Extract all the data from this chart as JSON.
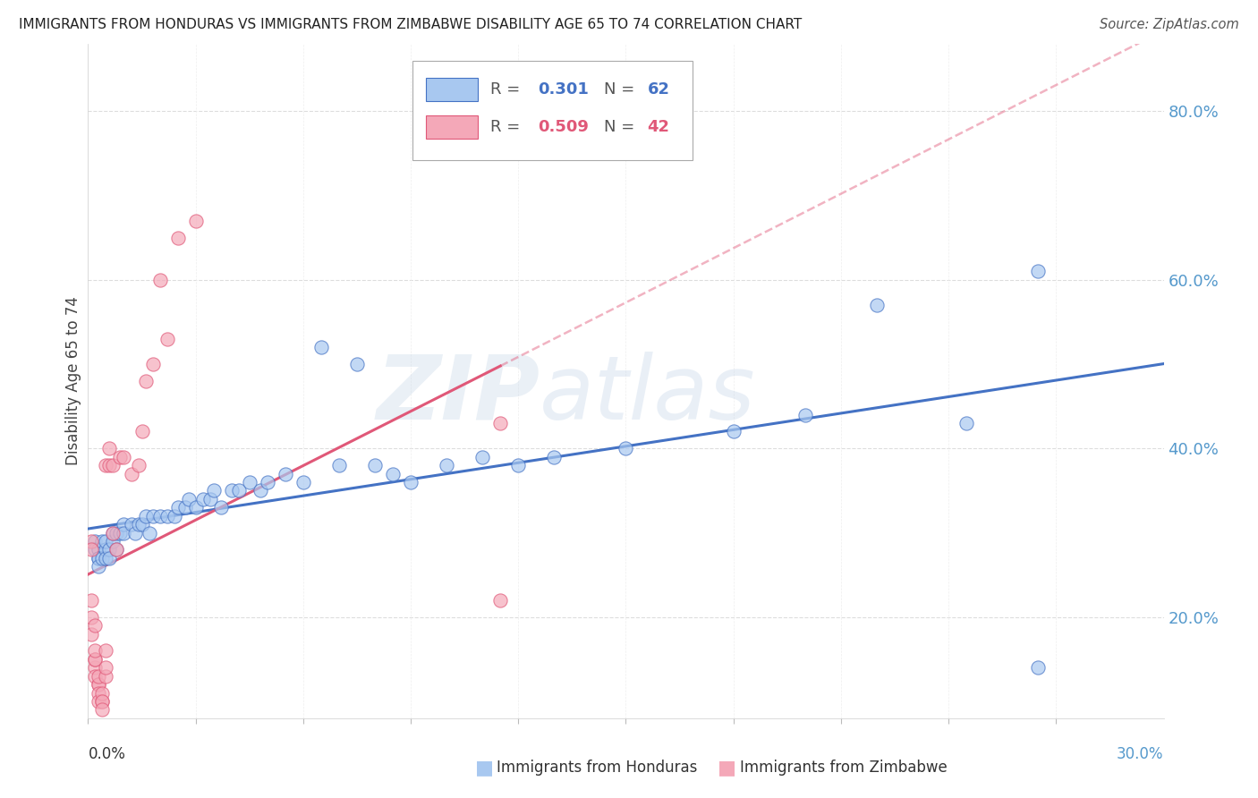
{
  "title": "IMMIGRANTS FROM HONDURAS VS IMMIGRANTS FROM ZIMBABWE DISABILITY AGE 65 TO 74 CORRELATION CHART",
  "source": "Source: ZipAtlas.com",
  "ylabel": "Disability Age 65 to 74",
  "xlim": [
    0.0,
    0.3
  ],
  "ylim": [
    0.08,
    0.88
  ],
  "yticks": [
    0.2,
    0.4,
    0.6,
    0.8
  ],
  "ytick_labels": [
    "20.0%",
    "40.0%",
    "60.0%",
    "80.0%"
  ],
  "xtick_count": 10,
  "legend_r_honduras": "0.301",
  "legend_n_honduras": "62",
  "legend_r_zimbabwe": "0.509",
  "legend_n_zimbabwe": "42",
  "color_honduras": "#A8C8F0",
  "color_zimbabwe": "#F4A8B8",
  "color_honduras_line": "#4472C4",
  "color_zimbabwe_line": "#E05878",
  "watermark_zip": "ZIP",
  "watermark_atlas": "atlas",
  "honduras_x": [
    0.002,
    0.002,
    0.003,
    0.003,
    0.003,
    0.003,
    0.004,
    0.004,
    0.005,
    0.005,
    0.005,
    0.006,
    0.006,
    0.007,
    0.007,
    0.008,
    0.008,
    0.009,
    0.01,
    0.01,
    0.012,
    0.013,
    0.014,
    0.015,
    0.016,
    0.017,
    0.018,
    0.02,
    0.022,
    0.024,
    0.025,
    0.027,
    0.028,
    0.03,
    0.032,
    0.034,
    0.035,
    0.037,
    0.04,
    0.042,
    0.045,
    0.048,
    0.05,
    0.055,
    0.06,
    0.065,
    0.07,
    0.075,
    0.08,
    0.085,
    0.09,
    0.1,
    0.11,
    0.12,
    0.13,
    0.15,
    0.18,
    0.2,
    0.22,
    0.245,
    0.265,
    0.265
  ],
  "honduras_y": [
    0.29,
    0.28,
    0.28,
    0.27,
    0.27,
    0.26,
    0.29,
    0.27,
    0.28,
    0.29,
    0.27,
    0.28,
    0.27,
    0.29,
    0.3,
    0.28,
    0.3,
    0.3,
    0.31,
    0.3,
    0.31,
    0.3,
    0.31,
    0.31,
    0.32,
    0.3,
    0.32,
    0.32,
    0.32,
    0.32,
    0.33,
    0.33,
    0.34,
    0.33,
    0.34,
    0.34,
    0.35,
    0.33,
    0.35,
    0.35,
    0.36,
    0.35,
    0.36,
    0.37,
    0.36,
    0.52,
    0.38,
    0.5,
    0.38,
    0.37,
    0.36,
    0.38,
    0.39,
    0.38,
    0.39,
    0.4,
    0.42,
    0.44,
    0.57,
    0.43,
    0.61,
    0.14
  ],
  "zimbabwe_x": [
    0.001,
    0.001,
    0.001,
    0.001,
    0.001,
    0.002,
    0.002,
    0.002,
    0.002,
    0.002,
    0.002,
    0.003,
    0.003,
    0.003,
    0.003,
    0.003,
    0.004,
    0.004,
    0.004,
    0.004,
    0.005,
    0.005,
    0.005,
    0.005,
    0.006,
    0.006,
    0.007,
    0.007,
    0.008,
    0.009,
    0.01,
    0.012,
    0.014,
    0.015,
    0.016,
    0.018,
    0.02,
    0.022,
    0.025,
    0.03,
    0.115,
    0.115
  ],
  "zimbabwe_y": [
    0.29,
    0.28,
    0.22,
    0.2,
    0.18,
    0.19,
    0.14,
    0.15,
    0.15,
    0.16,
    0.13,
    0.12,
    0.12,
    0.13,
    0.11,
    0.1,
    0.1,
    0.11,
    0.1,
    0.09,
    0.13,
    0.14,
    0.16,
    0.38,
    0.38,
    0.4,
    0.3,
    0.38,
    0.28,
    0.39,
    0.39,
    0.37,
    0.38,
    0.42,
    0.48,
    0.5,
    0.6,
    0.53,
    0.65,
    0.67,
    0.43,
    0.22
  ]
}
